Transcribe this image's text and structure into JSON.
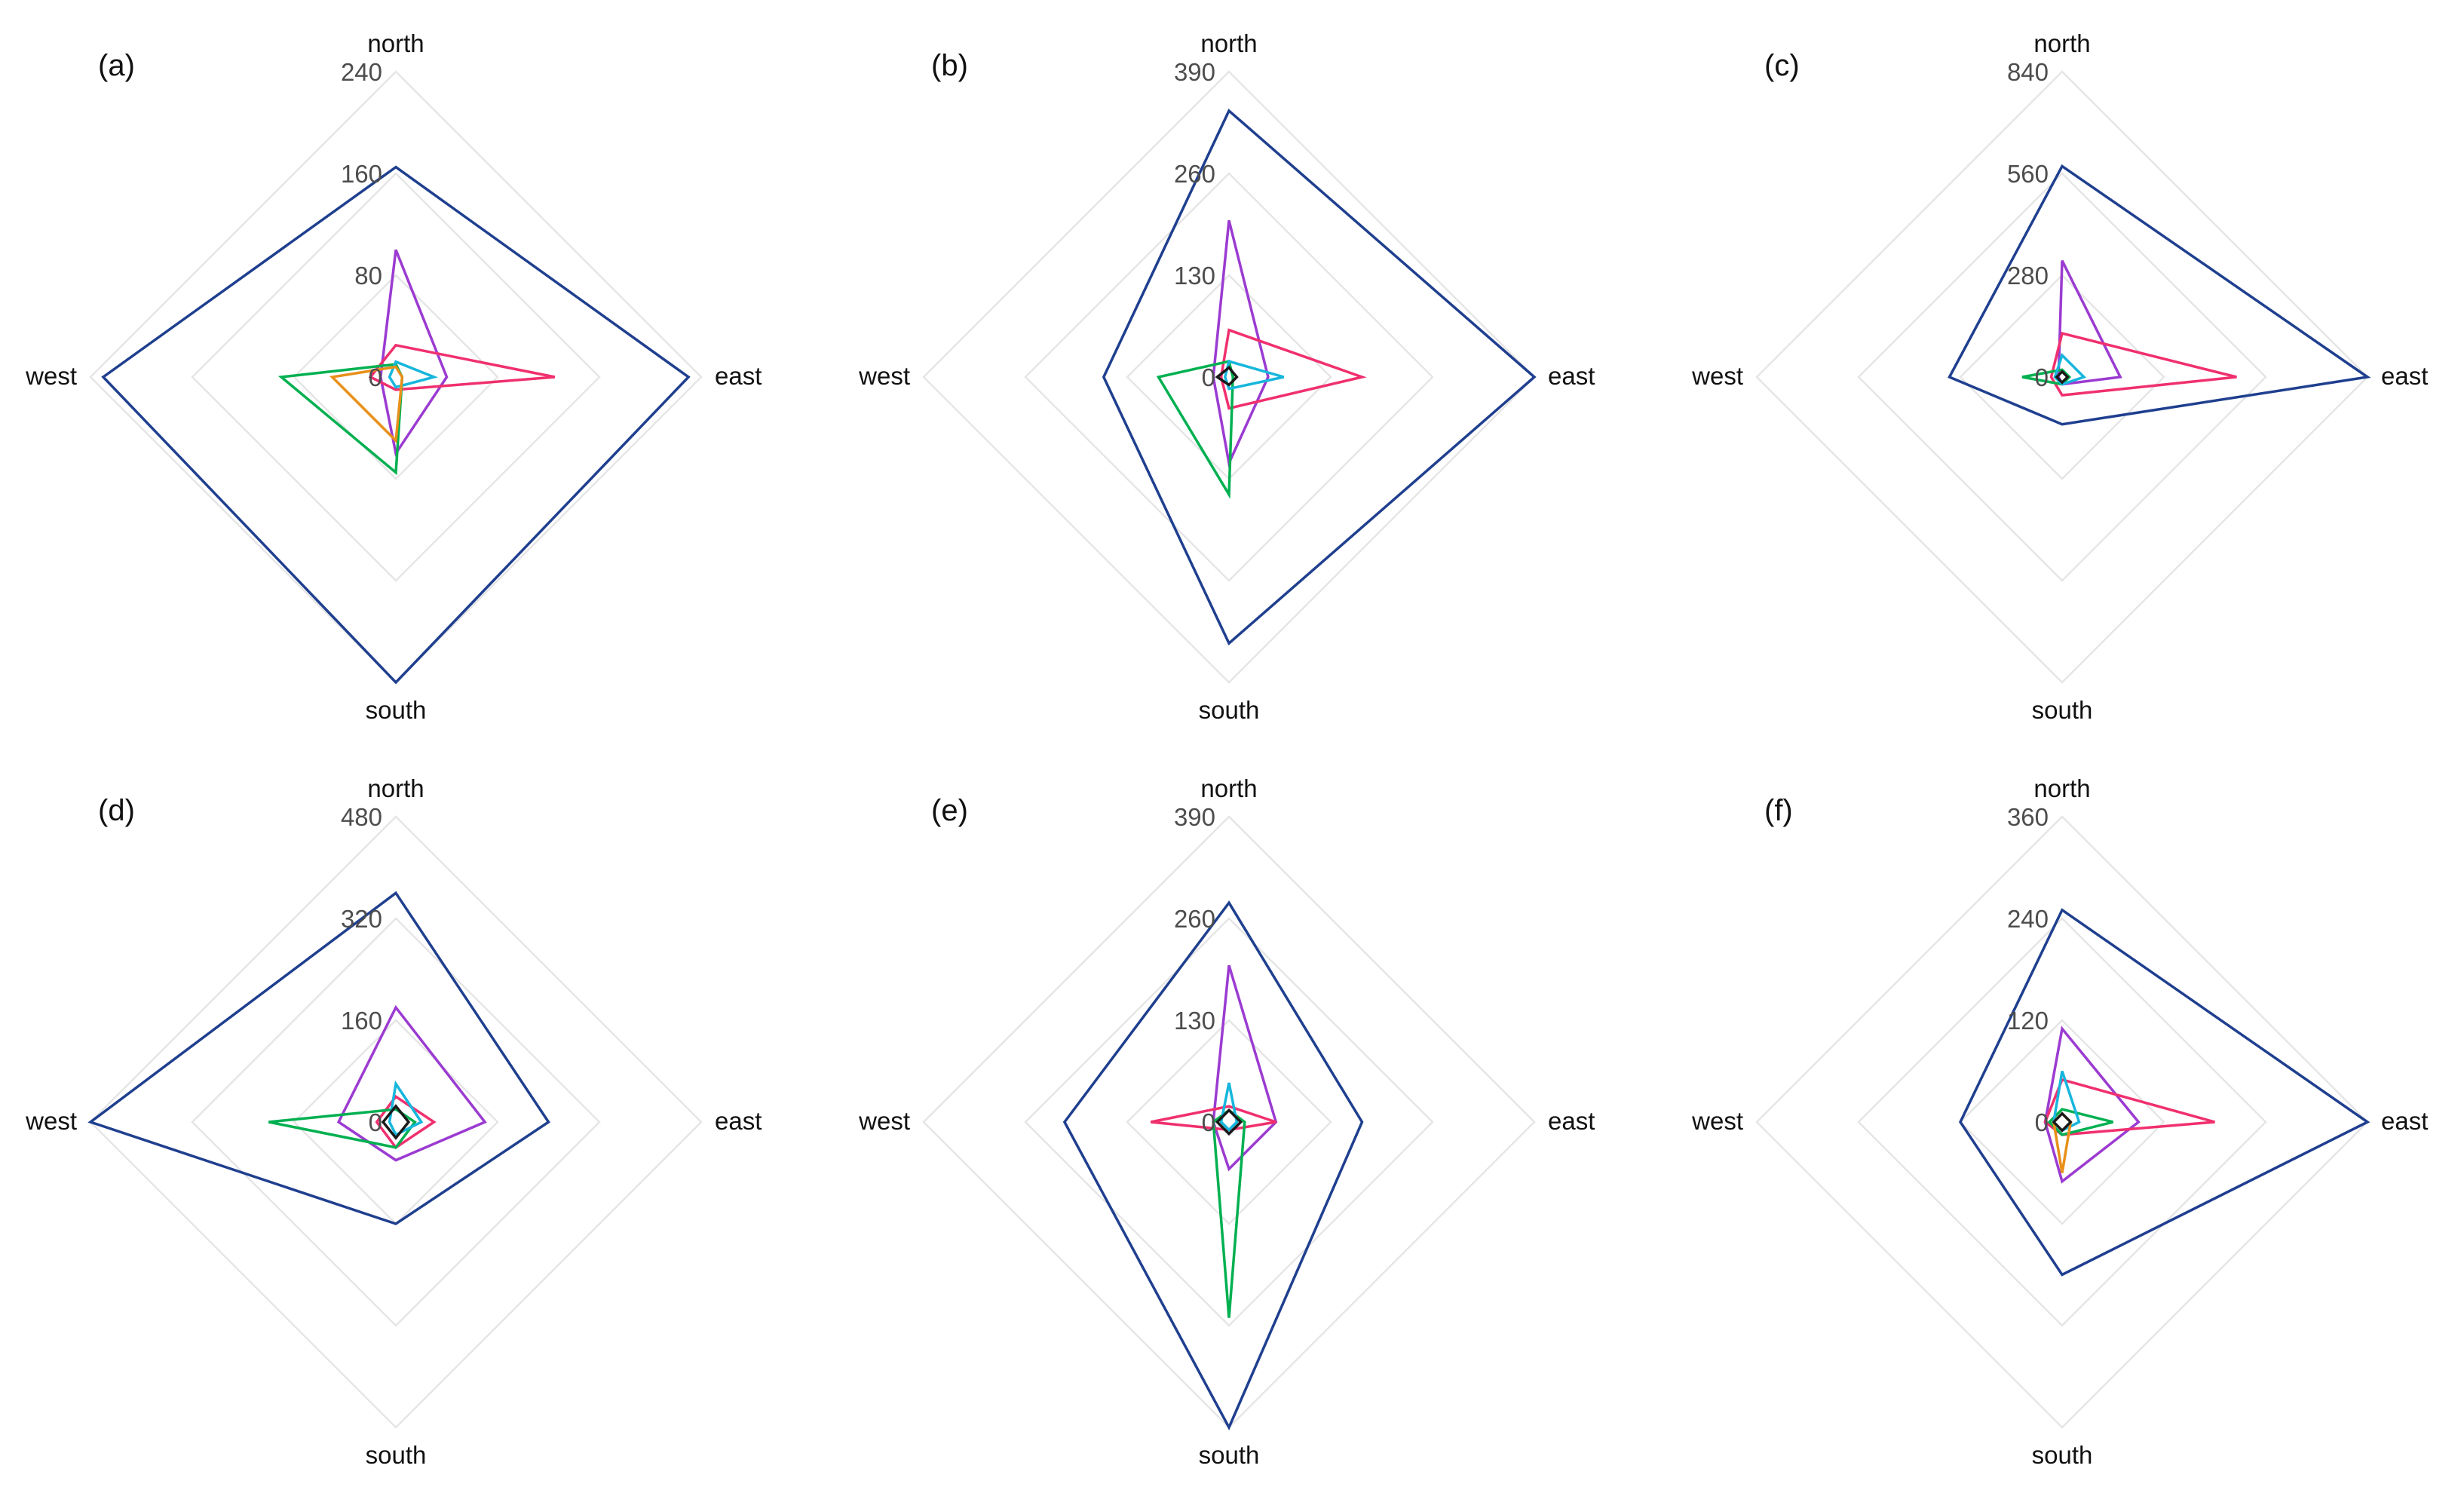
{
  "directions": [
    "north",
    "east",
    "south",
    "west"
  ],
  "series_colors": [
    "#1f3f8f",
    "#9b3bd1",
    "#f0306e",
    "#00b050",
    "#17b6dc",
    "#e8901a",
    "#1a1a1a"
  ],
  "chart_data": [
    {
      "type": "radar",
      "panel": "(a)",
      "axes": [
        "north",
        "east",
        "south",
        "west"
      ],
      "ticks": [
        0,
        80,
        160,
        240
      ],
      "rmax": 240,
      "grid": true,
      "series": [
        {
          "values": [
            165,
            230,
            240,
            230
          ],
          "color": "#1f3f8f"
        },
        {
          "values": [
            100,
            40,
            60,
            12
          ],
          "color": "#9b3bd1"
        },
        {
          "values": [
            25,
            125,
            10,
            20
          ],
          "color": "#f0306e"
        },
        {
          "values": [
            10,
            5,
            75,
            90
          ],
          "color": "#00b050"
        },
        {
          "values": [
            12,
            30,
            8,
            5
          ],
          "color": "#17b6dc"
        },
        {
          "values": [
            8,
            5,
            50,
            50
          ],
          "color": "#e8901a"
        }
      ]
    },
    {
      "type": "radar",
      "panel": "(b)",
      "axes": [
        "north",
        "east",
        "south",
        "west"
      ],
      "ticks": [
        0,
        130,
        260,
        390
      ],
      "rmax": 390,
      "grid": true,
      "series": [
        {
          "values": [
            340,
            390,
            340,
            160
          ],
          "color": "#1f3f8f"
        },
        {
          "values": [
            200,
            50,
            110,
            20
          ],
          "color": "#9b3bd1"
        },
        {
          "values": [
            60,
            170,
            40,
            10
          ],
          "color": "#f0306e"
        },
        {
          "values": [
            20,
            5,
            150,
            90
          ],
          "color": "#00b050"
        },
        {
          "values": [
            20,
            70,
            15,
            5
          ],
          "color": "#17b6dc"
        },
        {
          "values": [
            12,
            10,
            10,
            15
          ],
          "color": "#1a1a1a"
        }
      ]
    },
    {
      "type": "radar",
      "panel": "(c)",
      "axes": [
        "north",
        "east",
        "south",
        "west"
      ],
      "ticks": [
        0,
        280,
        560,
        840
      ],
      "rmax": 840,
      "grid": true,
      "series": [
        {
          "values": [
            580,
            840,
            130,
            310
          ],
          "color": "#1f3f8f"
        },
        {
          "values": [
            320,
            160,
            20,
            10
          ],
          "color": "#9b3bd1"
        },
        {
          "values": [
            120,
            480,
            50,
            30
          ],
          "color": "#f0306e"
        },
        {
          "values": [
            20,
            20,
            20,
            110
          ],
          "color": "#00b050"
        },
        {
          "values": [
            60,
            60,
            20,
            20
          ],
          "color": "#17b6dc"
        },
        {
          "values": [
            15,
            15,
            15,
            15
          ],
          "color": "#1a1a1a"
        }
      ]
    },
    {
      "type": "radar",
      "panel": "(d)",
      "axes": [
        "north",
        "east",
        "south",
        "west"
      ],
      "ticks": [
        0,
        160,
        320,
        480
      ],
      "rmax": 480,
      "grid": true,
      "series": [
        {
          "values": [
            360,
            240,
            160,
            480
          ],
          "color": "#1f3f8f"
        },
        {
          "values": [
            180,
            140,
            60,
            90
          ],
          "color": "#9b3bd1"
        },
        {
          "values": [
            40,
            60,
            40,
            30
          ],
          "color": "#f0306e"
        },
        {
          "values": [
            20,
            30,
            40,
            200
          ],
          "color": "#00b050"
        },
        {
          "values": [
            60,
            40,
            20,
            10
          ],
          "color": "#17b6dc"
        },
        {
          "values": [
            25,
            20,
            25,
            20
          ],
          "color": "#1a1a1a"
        }
      ]
    },
    {
      "type": "radar",
      "panel": "(e)",
      "axes": [
        "north",
        "east",
        "south",
        "west"
      ],
      "ticks": [
        0,
        130,
        260,
        390
      ],
      "rmax": 390,
      "grid": true,
      "series": [
        {
          "values": [
            280,
            170,
            390,
            210
          ],
          "color": "#1f3f8f"
        },
        {
          "values": [
            200,
            60,
            60,
            20
          ],
          "color": "#9b3bd1"
        },
        {
          "values": [
            20,
            60,
            10,
            100
          ],
          "color": "#f0306e"
        },
        {
          "values": [
            15,
            20,
            250,
            20
          ],
          "color": "#00b050"
        },
        {
          "values": [
            50,
            10,
            10,
            10
          ],
          "color": "#17b6dc"
        },
        {
          "values": [
            15,
            15,
            15,
            15
          ],
          "color": "#1a1a1a"
        }
      ]
    },
    {
      "type": "radar",
      "panel": "(f)",
      "axes": [
        "north",
        "east",
        "south",
        "west"
      ],
      "ticks": [
        0,
        120,
        240,
        360
      ],
      "rmax": 360,
      "grid": true,
      "series": [
        {
          "values": [
            250,
            360,
            180,
            120
          ],
          "color": "#1f3f8f"
        },
        {
          "values": [
            110,
            90,
            70,
            20
          ],
          "color": "#9b3bd1"
        },
        {
          "values": [
            50,
            180,
            15,
            20
          ],
          "color": "#f0306e"
        },
        {
          "values": [
            15,
            60,
            15,
            15
          ],
          "color": "#00b050"
        },
        {
          "values": [
            60,
            20,
            10,
            10
          ],
          "color": "#17b6dc"
        },
        {
          "values": [
            10,
            10,
            60,
            10
          ],
          "color": "#e8901a"
        },
        {
          "values": [
            10,
            10,
            10,
            10
          ],
          "color": "#1a1a1a"
        }
      ]
    }
  ]
}
